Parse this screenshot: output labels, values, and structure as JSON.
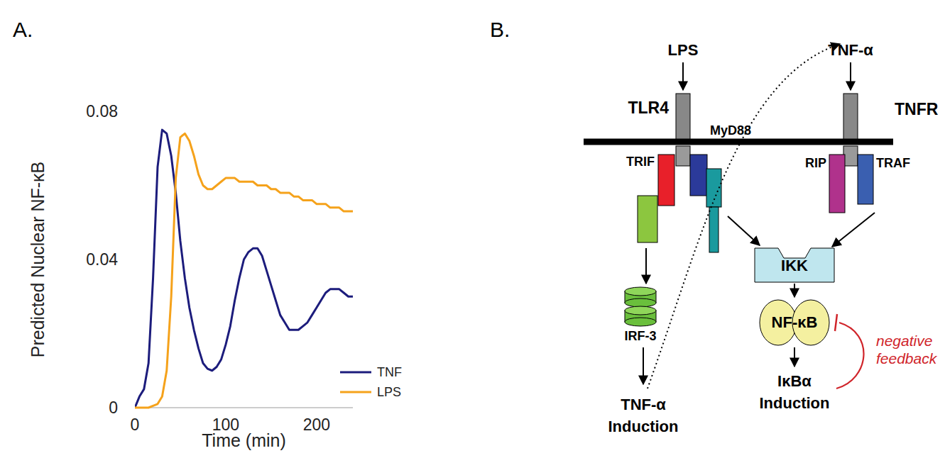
{
  "panel_labels": [
    "A.",
    "B."
  ],
  "chart_data": {
    "type": "line",
    "y_label": "Predicted Nuclear NF-κB",
    "x_label": "Time (min)",
    "x": [
      0,
      5,
      10,
      15,
      20,
      25,
      30,
      35,
      40,
      45,
      50,
      55,
      60,
      65,
      70,
      75,
      80,
      85,
      90,
      95,
      100,
      105,
      110,
      115,
      120,
      125,
      130,
      135,
      140,
      145,
      150,
      155,
      160,
      165,
      170,
      175,
      180,
      185,
      190,
      195,
      200,
      205,
      210,
      215,
      220,
      225,
      230,
      235,
      240
    ],
    "series": [
      {
        "name": "TNF",
        "color": "#1c1c7c",
        "values": [
          0,
          0.003,
          0.005,
          0.012,
          0.035,
          0.065,
          0.075,
          0.074,
          0.068,
          0.058,
          0.045,
          0.035,
          0.027,
          0.021,
          0.016,
          0.012,
          0.0105,
          0.01,
          0.011,
          0.013,
          0.017,
          0.022,
          0.029,
          0.035,
          0.04,
          0.042,
          0.043,
          0.043,
          0.041,
          0.037,
          0.033,
          0.029,
          0.025,
          0.023,
          0.021,
          0.021,
          0.021,
          0.022,
          0.023,
          0.025,
          0.027,
          0.029,
          0.031,
          0.032,
          0.032,
          0.032,
          0.031,
          0.03,
          0.03
        ]
      },
      {
        "name": "LPS",
        "color": "#f5a21b",
        "values": [
          0,
          0,
          0,
          0,
          0.0005,
          0.001,
          0.003,
          0.01,
          0.03,
          0.062,
          0.073,
          0.074,
          0.072,
          0.068,
          0.063,
          0.06,
          0.059,
          0.059,
          0.06,
          0.061,
          0.062,
          0.062,
          0.062,
          0.061,
          0.061,
          0.061,
          0.061,
          0.06,
          0.06,
          0.06,
          0.059,
          0.059,
          0.058,
          0.058,
          0.058,
          0.057,
          0.057,
          0.056,
          0.056,
          0.056,
          0.055,
          0.055,
          0.055,
          0.054,
          0.054,
          0.054,
          0.053,
          0.053,
          0.053
        ]
      }
    ],
    "xlim": [
      0,
      240
    ],
    "xticks": [
      0,
      100,
      200
    ],
    "ylim": [
      0,
      0.08
    ],
    "yticks": [
      0,
      0.04,
      0.08
    ],
    "grid": false,
    "legend": "lower right"
  },
  "diagram": {
    "nodes": [
      "LPS",
      "TNF-α",
      "TLR4",
      "TNFR",
      "TRIF",
      "MyD88",
      "RIP",
      "TRAF",
      "IRF-3",
      "IKK",
      "NF-κB",
      "TNF-α Induction",
      "IκBα Induction"
    ],
    "annotation": "negative feedback"
  }
}
